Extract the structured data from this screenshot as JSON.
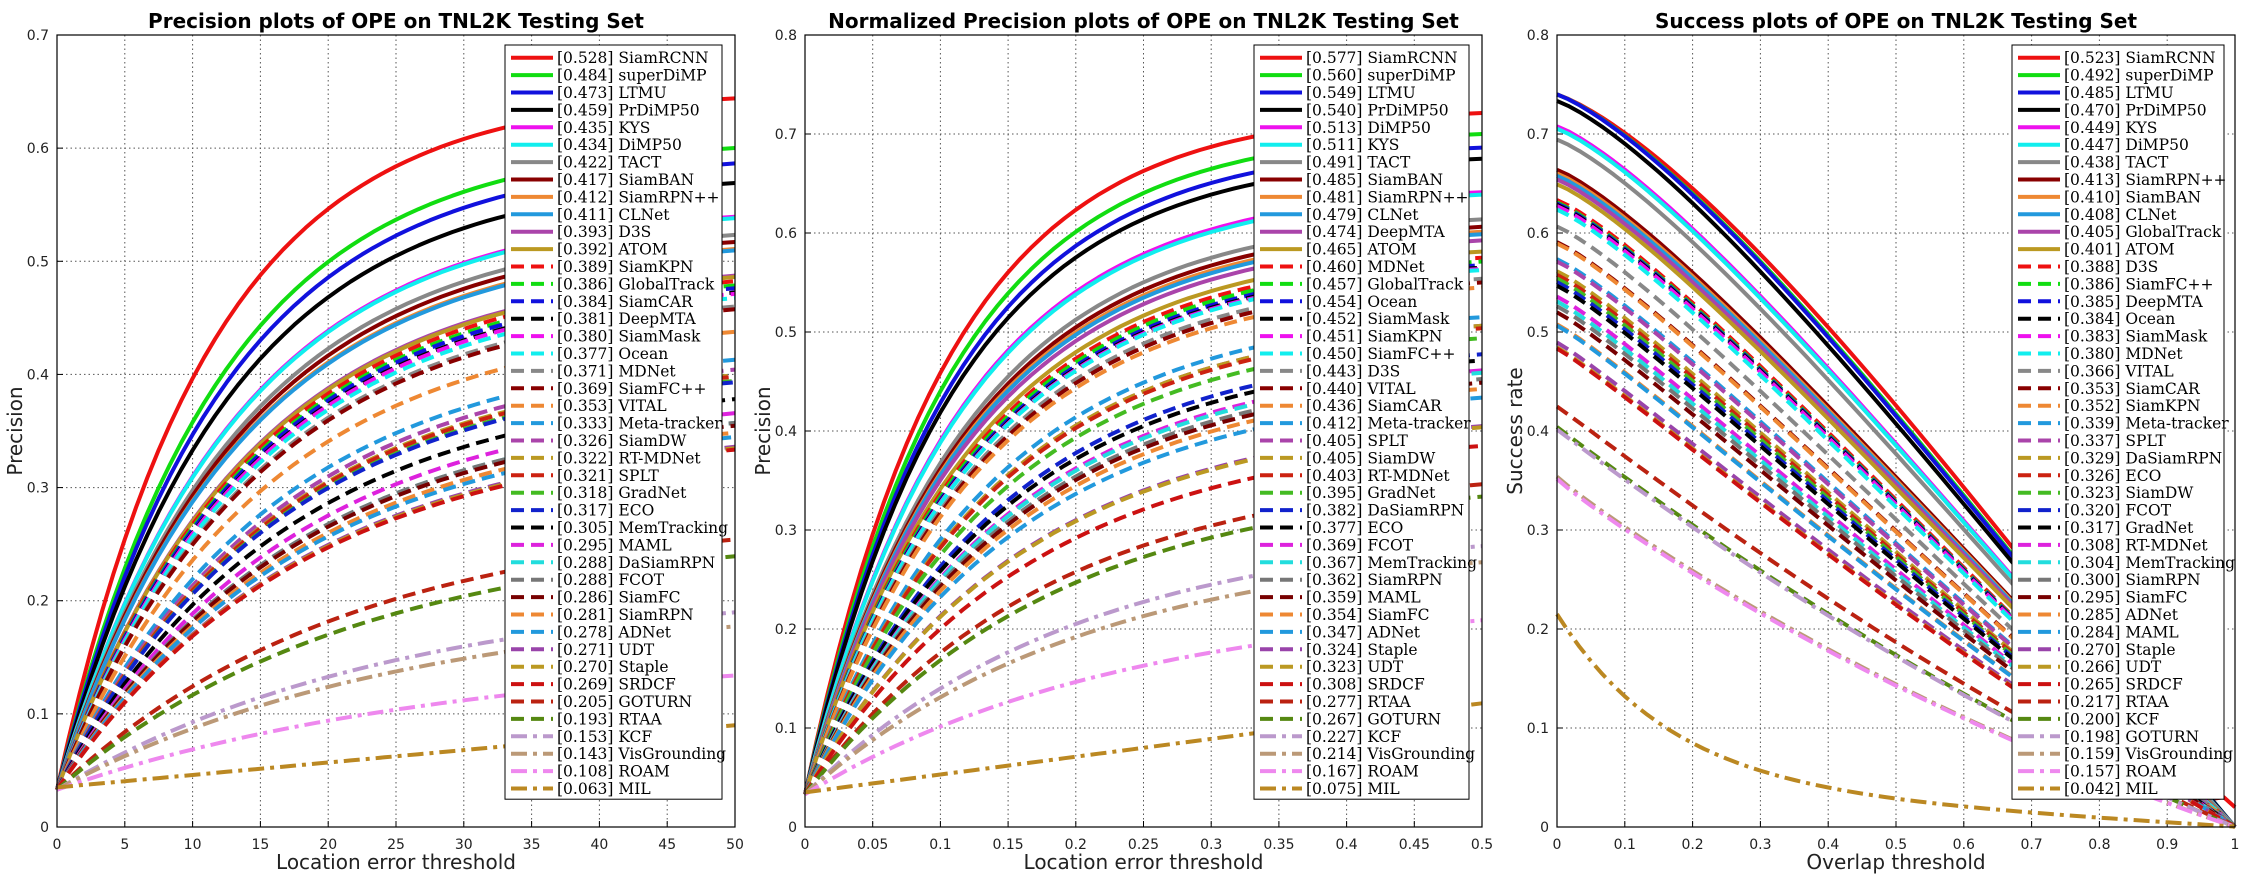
{
  "chart_data": [
    {
      "type": "line",
      "title": "Precision plots of OPE on TNL2K Testing Set",
      "xlabel": "Location error threshold",
      "ylabel": "Precision",
      "xlim": [
        0,
        50
      ],
      "ylim": [
        0,
        0.7
      ],
      "xticks": [
        "0",
        "5",
        "10",
        "15",
        "20",
        "25",
        "30",
        "35",
        "40",
        "45",
        "50"
      ],
      "yticks": [
        "0",
        "0.1",
        "0.2",
        "0.3",
        "0.4",
        "0.5",
        "0.6",
        "0.7"
      ],
      "grid": true,
      "legend_position": "right",
      "series": [
        {
          "name": "[0.528] SiamRCNN",
          "score": 0.528,
          "color": "#ee1111",
          "dash": "solid"
        },
        {
          "name": "[0.484] superDiMP",
          "score": 0.484,
          "color": "#11dd11",
          "dash": "solid"
        },
        {
          "name": "[0.473] LTMU",
          "score": 0.473,
          "color": "#1111dd",
          "dash": "solid"
        },
        {
          "name": "[0.459] PrDiMP50",
          "score": 0.459,
          "color": "#000000",
          "dash": "solid"
        },
        {
          "name": "[0.435] KYS",
          "score": 0.435,
          "color": "#ee11ee",
          "dash": "solid"
        },
        {
          "name": "[0.434] DiMP50",
          "score": 0.434,
          "color": "#11eeee",
          "dash": "solid"
        },
        {
          "name": "[0.422] TACT",
          "score": 0.422,
          "color": "#888888",
          "dash": "solid"
        },
        {
          "name": "[0.417] SiamBAN",
          "score": 0.417,
          "color": "#880000",
          "dash": "solid"
        },
        {
          "name": "[0.412] SiamRPN++",
          "score": 0.412,
          "color": "#ee8833",
          "dash": "solid"
        },
        {
          "name": "[0.411] CLNet",
          "score": 0.411,
          "color": "#2299dd",
          "dash": "solid"
        },
        {
          "name": "[0.393] D3S",
          "score": 0.393,
          "color": "#aa44aa",
          "dash": "solid"
        },
        {
          "name": "[0.392] ATOM",
          "score": 0.392,
          "color": "#bb9922",
          "dash": "solid"
        },
        {
          "name": "[0.389] SiamKPN",
          "score": 0.389,
          "color": "#ee1111",
          "dash": "dash"
        },
        {
          "name": "[0.386] GlobalTrack",
          "score": 0.386,
          "color": "#11dd11",
          "dash": "dash"
        },
        {
          "name": "[0.384] SiamCAR",
          "score": 0.384,
          "color": "#1111dd",
          "dash": "dash"
        },
        {
          "name": "[0.381] DeepMTA",
          "score": 0.381,
          "color": "#000000",
          "dash": "dash"
        },
        {
          "name": "[0.380] SiamMask",
          "score": 0.38,
          "color": "#ee11ee",
          "dash": "dash"
        },
        {
          "name": "[0.377] Ocean",
          "score": 0.377,
          "color": "#11eeee",
          "dash": "dash"
        },
        {
          "name": "[0.371] MDNet",
          "score": 0.371,
          "color": "#888888",
          "dash": "dash"
        },
        {
          "name": "[0.369] SiamFC++",
          "score": 0.369,
          "color": "#880000",
          "dash": "dash"
        },
        {
          "name": "[0.353] VITAL",
          "score": 0.353,
          "color": "#ee8833",
          "dash": "dash"
        },
        {
          "name": "[0.333] Meta-tracker",
          "score": 0.333,
          "color": "#2299dd",
          "dash": "dash"
        },
        {
          "name": "[0.326] SiamDW",
          "score": 0.326,
          "color": "#aa44aa",
          "dash": "dash"
        },
        {
          "name": "[0.322] RT-MDNet",
          "score": 0.322,
          "color": "#bb9922",
          "dash": "dash"
        },
        {
          "name": "[0.321] SPLT",
          "score": 0.321,
          "color": "#cc2211",
          "dash": "dash"
        },
        {
          "name": "[0.318] GradNet",
          "score": 0.318,
          "color": "#44bb22",
          "dash": "dash"
        },
        {
          "name": "[0.317] ECO",
          "score": 0.317,
          "color": "#1122cc",
          "dash": "dash"
        },
        {
          "name": "[0.305] MemTracking",
          "score": 0.305,
          "color": "#000000",
          "dash": "dash"
        },
        {
          "name": "[0.295] MAML",
          "score": 0.295,
          "color": "#dd22dd",
          "dash": "dash"
        },
        {
          "name": "[0.288] DaSiamRPN",
          "score": 0.288,
          "color": "#22dddd",
          "dash": "dash"
        },
        {
          "name": "[0.288] FCOT",
          "score": 0.288,
          "color": "#777777",
          "dash": "dash"
        },
        {
          "name": "[0.286] SiamFC",
          "score": 0.286,
          "color": "#770000",
          "dash": "dash"
        },
        {
          "name": "[0.281] SiamRPN",
          "score": 0.281,
          "color": "#ee8833",
          "dash": "dash"
        },
        {
          "name": "[0.278] ADNet",
          "score": 0.278,
          "color": "#2299dd",
          "dash": "dash"
        },
        {
          "name": "[0.271] UDT",
          "score": 0.271,
          "color": "#9944aa",
          "dash": "dash"
        },
        {
          "name": "[0.270] Staple",
          "score": 0.27,
          "color": "#bb9922",
          "dash": "dash"
        },
        {
          "name": "[0.269] SRDCF",
          "score": 0.269,
          "color": "#cc1111",
          "dash": "dash"
        },
        {
          "name": "[0.205] GOTURN",
          "score": 0.205,
          "color": "#bb2211",
          "dash": "dash"
        },
        {
          "name": "[0.193] RTAA",
          "score": 0.193,
          "color": "#558811",
          "dash": "dash"
        },
        {
          "name": "[0.153] KCF",
          "score": 0.153,
          "color": "#bb99cc",
          "dash": "dashdot"
        },
        {
          "name": "[0.143] VisGrounding",
          "score": 0.143,
          "color": "#bb9977",
          "dash": "dashdot"
        },
        {
          "name": "[0.108] ROAM",
          "score": 0.108,
          "color": "#ee88ee",
          "dash": "dashdot"
        },
        {
          "name": "[0.063] MIL",
          "score": 0.063,
          "color": "#bb8822",
          "dash": "dashdot"
        }
      ]
    },
    {
      "type": "line",
      "title": "Normalized Precision plots of OPE on TNL2K Testing Set",
      "xlabel": "Location error threshold",
      "ylabel": "Precision",
      "xlim": [
        0,
        0.5
      ],
      "ylim": [
        0,
        0.8
      ],
      "xticks": [
        "0",
        "0.05",
        "0.1",
        "0.15",
        "0.2",
        "0.25",
        "0.3",
        "0.35",
        "0.4",
        "0.45",
        "0.5"
      ],
      "yticks": [
        "0",
        "0.1",
        "0.2",
        "0.3",
        "0.4",
        "0.5",
        "0.6",
        "0.7",
        "0.8"
      ],
      "grid": true,
      "legend_position": "right",
      "series": [
        {
          "name": "[0.577] SiamRCNN",
          "score": 0.577,
          "color": "#ee1111",
          "dash": "solid"
        },
        {
          "name": "[0.560] superDiMP",
          "score": 0.56,
          "color": "#11dd11",
          "dash": "solid"
        },
        {
          "name": "[0.549] LTMU",
          "score": 0.549,
          "color": "#1111dd",
          "dash": "solid"
        },
        {
          "name": "[0.540] PrDiMP50",
          "score": 0.54,
          "color": "#000000",
          "dash": "solid"
        },
        {
          "name": "[0.513] DiMP50",
          "score": 0.513,
          "color": "#ee11ee",
          "dash": "solid"
        },
        {
          "name": "[0.511] KYS",
          "score": 0.511,
          "color": "#11eeee",
          "dash": "solid"
        },
        {
          "name": "[0.491] TACT",
          "score": 0.491,
          "color": "#888888",
          "dash": "solid"
        },
        {
          "name": "[0.485] SiamBAN",
          "score": 0.485,
          "color": "#880000",
          "dash": "solid"
        },
        {
          "name": "[0.481] SiamRPN++",
          "score": 0.481,
          "color": "#ee8833",
          "dash": "solid"
        },
        {
          "name": "[0.479] CLNet",
          "score": 0.479,
          "color": "#2299dd",
          "dash": "solid"
        },
        {
          "name": "[0.474] DeepMTA",
          "score": 0.474,
          "color": "#aa44aa",
          "dash": "solid"
        },
        {
          "name": "[0.465] ATOM",
          "score": 0.465,
          "color": "#bb9922",
          "dash": "solid"
        },
        {
          "name": "[0.460] MDNet",
          "score": 0.46,
          "color": "#ee1111",
          "dash": "dash"
        },
        {
          "name": "[0.457] GlobalTrack",
          "score": 0.457,
          "color": "#11dd11",
          "dash": "dash"
        },
        {
          "name": "[0.454] Ocean",
          "score": 0.454,
          "color": "#1111dd",
          "dash": "dash"
        },
        {
          "name": "[0.452] SiamMask",
          "score": 0.452,
          "color": "#000000",
          "dash": "dash"
        },
        {
          "name": "[0.451] SiamKPN",
          "score": 0.451,
          "color": "#ee11ee",
          "dash": "dash"
        },
        {
          "name": "[0.450] SiamFC++",
          "score": 0.45,
          "color": "#11eeee",
          "dash": "dash"
        },
        {
          "name": "[0.443] D3S",
          "score": 0.443,
          "color": "#888888",
          "dash": "dash"
        },
        {
          "name": "[0.440] VITAL",
          "score": 0.44,
          "color": "#880000",
          "dash": "dash"
        },
        {
          "name": "[0.436] SiamCAR",
          "score": 0.436,
          "color": "#ee8833",
          "dash": "dash"
        },
        {
          "name": "[0.412] Meta-tracker",
          "score": 0.412,
          "color": "#2299dd",
          "dash": "dash"
        },
        {
          "name": "[0.405] SPLT",
          "score": 0.405,
          "color": "#aa44aa",
          "dash": "dash"
        },
        {
          "name": "[0.405] SiamDW",
          "score": 0.405,
          "color": "#bb9922",
          "dash": "dash"
        },
        {
          "name": "[0.403] RT-MDNet",
          "score": 0.403,
          "color": "#cc2211",
          "dash": "dash"
        },
        {
          "name": "[0.395] GradNet",
          "score": 0.395,
          "color": "#44bb22",
          "dash": "dash"
        },
        {
          "name": "[0.382] DaSiamRPN",
          "score": 0.382,
          "color": "#1122cc",
          "dash": "dash"
        },
        {
          "name": "[0.377] ECO",
          "score": 0.377,
          "color": "#000000",
          "dash": "dash"
        },
        {
          "name": "[0.369] FCOT",
          "score": 0.369,
          "color": "#dd22dd",
          "dash": "dash"
        },
        {
          "name": "[0.367] MemTracking",
          "score": 0.367,
          "color": "#22dddd",
          "dash": "dash"
        },
        {
          "name": "[0.362] SiamRPN",
          "score": 0.362,
          "color": "#777777",
          "dash": "dash"
        },
        {
          "name": "[0.359] MAML",
          "score": 0.359,
          "color": "#770000",
          "dash": "dash"
        },
        {
          "name": "[0.354] SiamFC",
          "score": 0.354,
          "color": "#ee8833",
          "dash": "dash"
        },
        {
          "name": "[0.347] ADNet",
          "score": 0.347,
          "color": "#2299dd",
          "dash": "dash"
        },
        {
          "name": "[0.324] Staple",
          "score": 0.324,
          "color": "#9944aa",
          "dash": "dash"
        },
        {
          "name": "[0.323] UDT",
          "score": 0.323,
          "color": "#bb9922",
          "dash": "dash"
        },
        {
          "name": "[0.308] SRDCF",
          "score": 0.308,
          "color": "#cc1111",
          "dash": "dash"
        },
        {
          "name": "[0.277] RTAA",
          "score": 0.277,
          "color": "#bb2211",
          "dash": "dash"
        },
        {
          "name": "[0.267] GOTURN",
          "score": 0.267,
          "color": "#558811",
          "dash": "dash"
        },
        {
          "name": "[0.227] KCF",
          "score": 0.227,
          "color": "#bb99cc",
          "dash": "dashdot"
        },
        {
          "name": "[0.214] VisGrounding",
          "score": 0.214,
          "color": "#bb9977",
          "dash": "dashdot"
        },
        {
          "name": "[0.167] ROAM",
          "score": 0.167,
          "color": "#ee88ee",
          "dash": "dashdot"
        },
        {
          "name": "[0.075] MIL",
          "score": 0.075,
          "color": "#bb8822",
          "dash": "dashdot"
        }
      ]
    },
    {
      "type": "line",
      "title": "Success plots of OPE on TNL2K Testing Set",
      "xlabel": "Overlap threshold",
      "ylabel": "Success rate",
      "xlim": [
        0,
        1
      ],
      "ylim": [
        0,
        0.8
      ],
      "xticks": [
        "0",
        "0.1",
        "0.2",
        "0.3",
        "0.4",
        "0.5",
        "0.6",
        "0.7",
        "0.8",
        "0.9",
        "1"
      ],
      "yticks": [
        "0",
        "0.1",
        "0.2",
        "0.3",
        "0.4",
        "0.5",
        "0.6",
        "0.7",
        "0.8"
      ],
      "grid": true,
      "legend_position": "right",
      "series": [
        {
          "name": "[0.523] SiamRCNN",
          "score": 0.523,
          "color": "#ee1111",
          "dash": "solid"
        },
        {
          "name": "[0.492] superDiMP",
          "score": 0.492,
          "color": "#11dd11",
          "dash": "solid"
        },
        {
          "name": "[0.485] LTMU",
          "score": 0.485,
          "color": "#1111dd",
          "dash": "solid"
        },
        {
          "name": "[0.470] PrDiMP50",
          "score": 0.47,
          "color": "#000000",
          "dash": "solid"
        },
        {
          "name": "[0.449] KYS",
          "score": 0.449,
          "color": "#ee11ee",
          "dash": "solid"
        },
        {
          "name": "[0.447] DiMP50",
          "score": 0.447,
          "color": "#11eeee",
          "dash": "solid"
        },
        {
          "name": "[0.438] TACT",
          "score": 0.438,
          "color": "#888888",
          "dash": "solid"
        },
        {
          "name": "[0.413] SiamRPN++",
          "score": 0.413,
          "color": "#880000",
          "dash": "solid"
        },
        {
          "name": "[0.410] SiamBAN",
          "score": 0.41,
          "color": "#ee8833",
          "dash": "solid"
        },
        {
          "name": "[0.408] CLNet",
          "score": 0.408,
          "color": "#2299dd",
          "dash": "solid"
        },
        {
          "name": "[0.405] GlobalTrack",
          "score": 0.405,
          "color": "#aa44aa",
          "dash": "solid"
        },
        {
          "name": "[0.401] ATOM",
          "score": 0.401,
          "color": "#bb9922",
          "dash": "solid"
        },
        {
          "name": "[0.388] D3S",
          "score": 0.388,
          "color": "#ee1111",
          "dash": "dash"
        },
        {
          "name": "[0.386] SiamFC++",
          "score": 0.386,
          "color": "#11dd11",
          "dash": "dash"
        },
        {
          "name": "[0.385] DeepMTA",
          "score": 0.385,
          "color": "#1111dd",
          "dash": "dash"
        },
        {
          "name": "[0.384] Ocean",
          "score": 0.384,
          "color": "#000000",
          "dash": "dash"
        },
        {
          "name": "[0.383] SiamMask",
          "score": 0.383,
          "color": "#ee11ee",
          "dash": "dash"
        },
        {
          "name": "[0.380] MDNet",
          "score": 0.38,
          "color": "#11eeee",
          "dash": "dash"
        },
        {
          "name": "[0.366] VITAL",
          "score": 0.366,
          "color": "#888888",
          "dash": "dash"
        },
        {
          "name": "[0.353] SiamCAR",
          "score": 0.353,
          "color": "#880000",
          "dash": "dash"
        },
        {
          "name": "[0.352] SiamKPN",
          "score": 0.352,
          "color": "#ee8833",
          "dash": "dash"
        },
        {
          "name": "[0.339] Meta-tracker",
          "score": 0.339,
          "color": "#2299dd",
          "dash": "dash"
        },
        {
          "name": "[0.337] SPLT",
          "score": 0.337,
          "color": "#aa44aa",
          "dash": "dash"
        },
        {
          "name": "[0.329] DaSiamRPN",
          "score": 0.329,
          "color": "#bb9922",
          "dash": "dash"
        },
        {
          "name": "[0.326] ECO",
          "score": 0.326,
          "color": "#cc2211",
          "dash": "dash"
        },
        {
          "name": "[0.323] SiamDW",
          "score": 0.323,
          "color": "#44bb22",
          "dash": "dash"
        },
        {
          "name": "[0.320] FCOT",
          "score": 0.32,
          "color": "#1122cc",
          "dash": "dash"
        },
        {
          "name": "[0.317] GradNet",
          "score": 0.317,
          "color": "#000000",
          "dash": "dash"
        },
        {
          "name": "[0.308] RT-MDNet",
          "score": 0.308,
          "color": "#dd22dd",
          "dash": "dash"
        },
        {
          "name": "[0.304] MemTracking",
          "score": 0.304,
          "color": "#22dddd",
          "dash": "dash"
        },
        {
          "name": "[0.300] SiamRPN",
          "score": 0.3,
          "color": "#777777",
          "dash": "dash"
        },
        {
          "name": "[0.295] SiamFC",
          "score": 0.295,
          "color": "#770000",
          "dash": "dash"
        },
        {
          "name": "[0.285] ADNet",
          "score": 0.285,
          "color": "#ee8833",
          "dash": "dash"
        },
        {
          "name": "[0.284] MAML",
          "score": 0.284,
          "color": "#2299dd",
          "dash": "dash"
        },
        {
          "name": "[0.270] Staple",
          "score": 0.27,
          "color": "#9944aa",
          "dash": "dash"
        },
        {
          "name": "[0.266] UDT",
          "score": 0.266,
          "color": "#bb9922",
          "dash": "dash"
        },
        {
          "name": "[0.265] SRDCF",
          "score": 0.265,
          "color": "#cc1111",
          "dash": "dash"
        },
        {
          "name": "[0.217] RTAA",
          "score": 0.217,
          "color": "#bb2211",
          "dash": "dash"
        },
        {
          "name": "[0.200] KCF",
          "score": 0.2,
          "color": "#558811",
          "dash": "dash"
        },
        {
          "name": "[0.198] GOTURN",
          "score": 0.198,
          "color": "#bb99cc",
          "dash": "dashdot"
        },
        {
          "name": "[0.159] VisGrounding",
          "score": 0.159,
          "color": "#bb9977",
          "dash": "dashdot"
        },
        {
          "name": "[0.157] ROAM",
          "score": 0.157,
          "color": "#ee88ee",
          "dash": "dashdot"
        },
        {
          "name": "[0.042] MIL",
          "score": 0.042,
          "color": "#bb8822",
          "dash": "dashdot"
        }
      ]
    }
  ]
}
